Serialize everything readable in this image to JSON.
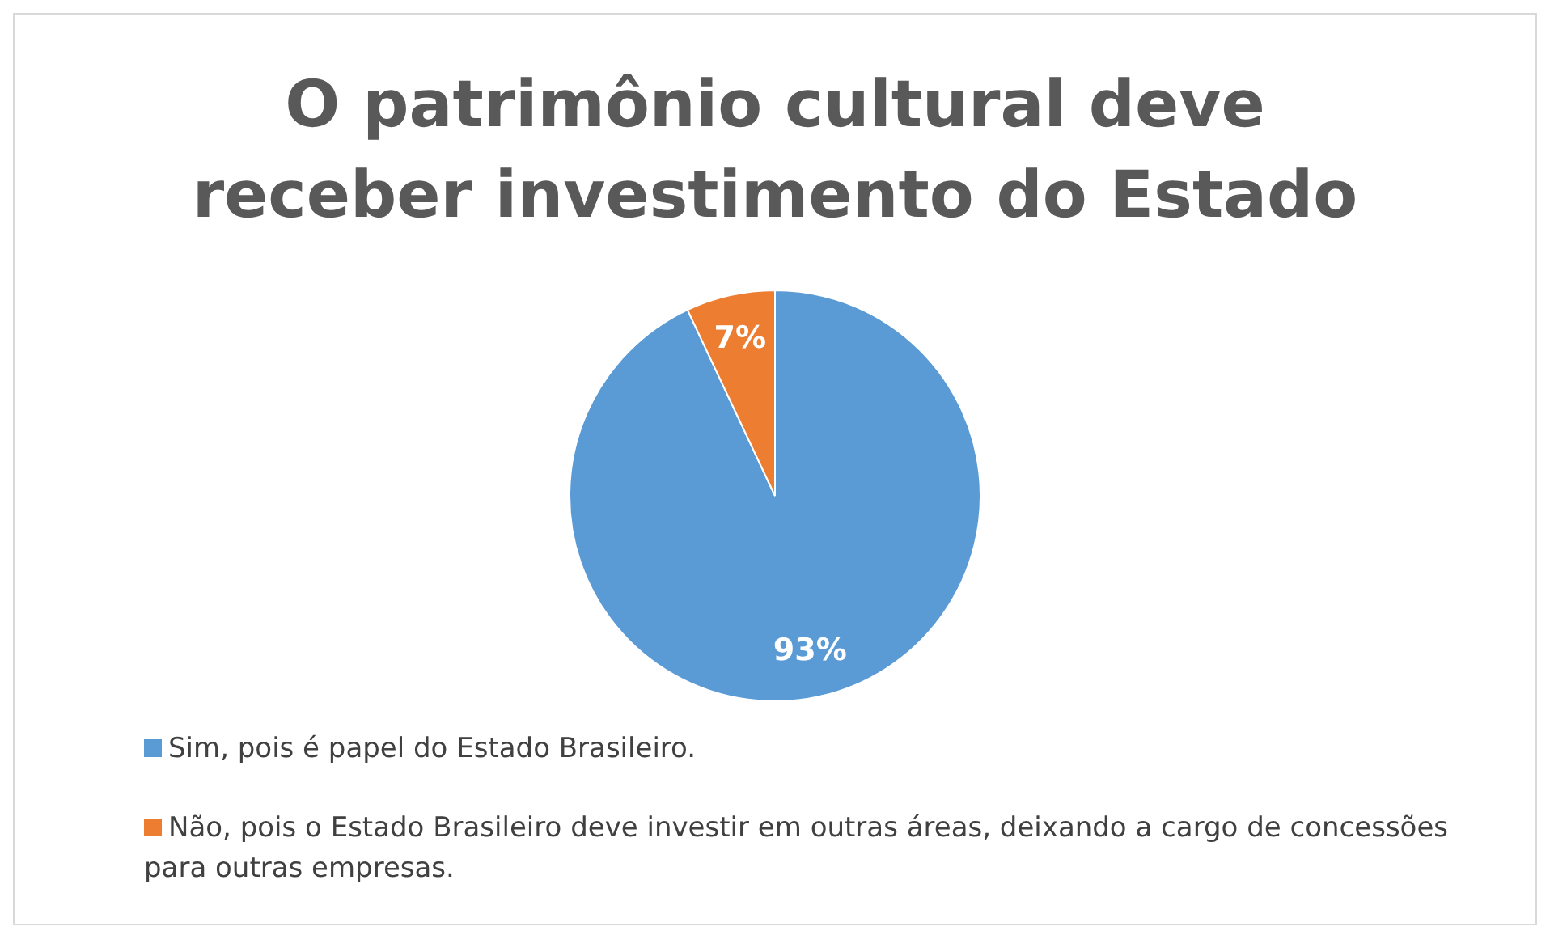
{
  "chart_data": {
    "type": "pie",
    "title": "O patrimônio cultural deve receber investimento do Estado",
    "categories": [
      "Sim, pois é papel do Estado Brasileiro.",
      "Não, pois o Estado Brasileiro deve investir em outras áreas, deixando a cargo de concessões para outras empresas."
    ],
    "values": [
      93,
      7
    ],
    "colors": [
      "#5b9bd5",
      "#ed7d31"
    ],
    "value_labels": [
      "93%",
      "7%"
    ],
    "legend": "bottom"
  }
}
